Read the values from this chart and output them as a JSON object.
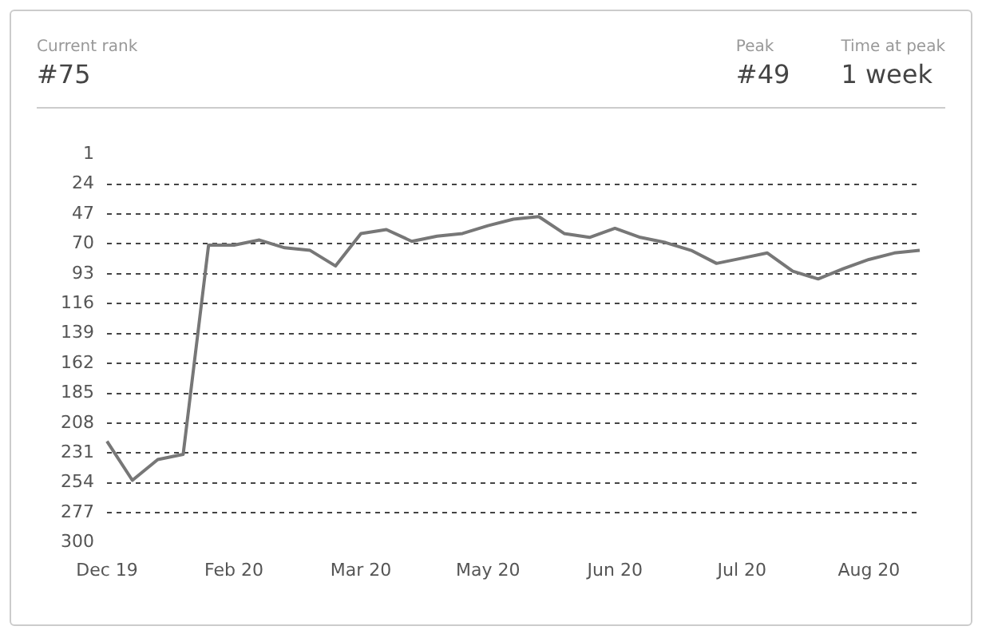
{
  "chart_data": {
    "type": "line",
    "annotations": [
      "Current rank",
      "#75",
      "Peak",
      "#49",
      "Time at peak",
      "1 week"
    ],
    "categories": [
      "Dec 19",
      null,
      null,
      null,
      null,
      "Feb 20",
      null,
      null,
      null,
      null,
      "Mar 20",
      null,
      null,
      null,
      null,
      "May 20",
      null,
      null,
      null,
      null,
      "Jun 20",
      null,
      null,
      null,
      null,
      "Jul 20",
      null,
      null,
      null,
      null,
      "Aug 20",
      null,
      null
    ],
    "series": [
      {
        "color": "#777777",
        "values": [
          222,
          252,
          236,
          232,
          71,
          71,
          67,
          73,
          75,
          87,
          62,
          59,
          68,
          64,
          62,
          56,
          51,
          49,
          62,
          65,
          58,
          65,
          69,
          75,
          85,
          81,
          77,
          91,
          97,
          89,
          82,
          77,
          75
        ]
      }
    ],
    "ylim": [
      300,
      1
    ],
    "yticks": [
      1,
      24,
      47,
      70,
      93,
      116,
      139,
      162,
      185,
      208,
      231,
      254,
      277,
      300
    ],
    "grid": "y",
    "legend": false,
    "marker": "none",
    "line_style": "solid"
  }
}
